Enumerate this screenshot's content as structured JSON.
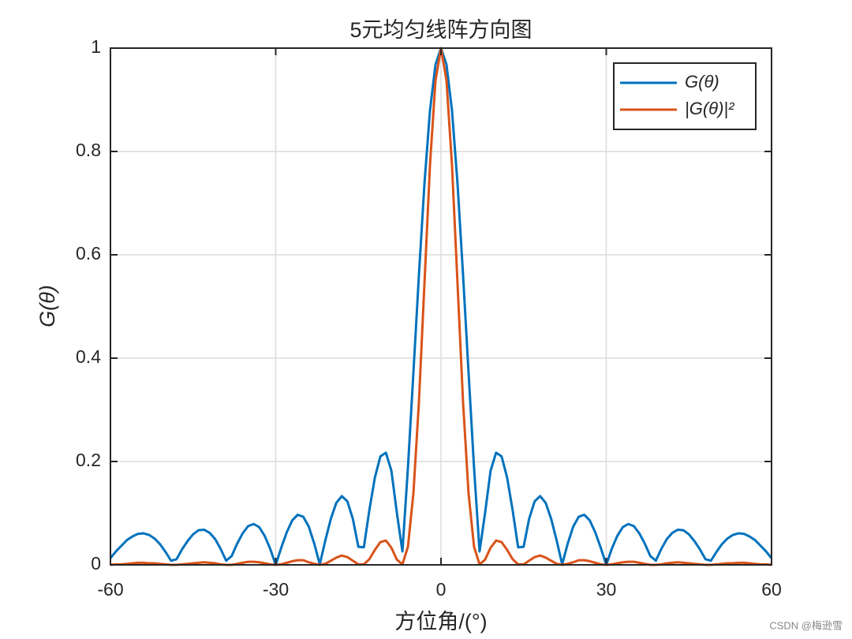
{
  "chart_data": {
    "type": "line",
    "title": "5元均匀线阵方向图",
    "x_label": "方位角/(°)",
    "y_label": "G(θ)",
    "x": [
      -60,
      -59,
      -58,
      -57,
      -56,
      -55,
      -54,
      -53,
      -52,
      -51,
      -50,
      -49,
      -48,
      -47,
      -46,
      -45,
      -44,
      -43,
      -42,
      -41,
      -40,
      -39,
      -38,
      -37,
      -36,
      -35,
      -34,
      -33,
      -32,
      -31,
      -30,
      -29,
      -28,
      -27,
      -26,
      -25,
      -24,
      -23,
      -22,
      -21,
      -20,
      -19,
      -18,
      -17,
      -16,
      -15,
      -14,
      -13,
      -12,
      -11,
      -10,
      -9,
      -8,
      -7,
      -6,
      -5,
      -4,
      -3,
      -2,
      -1,
      0,
      1,
      2,
      3,
      4,
      5,
      6,
      7,
      8,
      9,
      10,
      11,
      12,
      13,
      14,
      15,
      16,
      17,
      18,
      19,
      20,
      21,
      22,
      23,
      24,
      25,
      26,
      27,
      28,
      29,
      30,
      31,
      32,
      33,
      34,
      35,
      36,
      37,
      38,
      39,
      40,
      41,
      42,
      43,
      44,
      45,
      46,
      47,
      48,
      49,
      50,
      51,
      52,
      53,
      54,
      55,
      56,
      57,
      58,
      59,
      60
    ],
    "series": [
      {
        "name": "G(θ)",
        "color": "#0072BD",
        "values": [
          0.013,
          0.026,
          0.037,
          0.048,
          0.055,
          0.06,
          0.061,
          0.058,
          0.051,
          0.04,
          0.025,
          0.008,
          0.011,
          0.03,
          0.046,
          0.059,
          0.067,
          0.068,
          0.062,
          0.05,
          0.031,
          0.008,
          0.017,
          0.041,
          0.061,
          0.075,
          0.079,
          0.073,
          0.056,
          0.031,
          0,
          0.033,
          0.063,
          0.086,
          0.097,
          0.093,
          0.074,
          0.041,
          0.001,
          0.047,
          0.089,
          0.12,
          0.133,
          0.123,
          0.089,
          0.035,
          0.034,
          0.106,
          0.169,
          0.21,
          0.217,
          0.182,
          0.1,
          0.026,
          0.188,
          0.373,
          0.562,
          0.738,
          0.879,
          0.968,
          1,
          0.968,
          0.879,
          0.738,
          0.562,
          0.373,
          0.188,
          0.026,
          0.1,
          0.182,
          0.217,
          0.21,
          0.169,
          0.106,
          0.034,
          0.035,
          0.089,
          0.123,
          0.133,
          0.12,
          0.089,
          0.047,
          0.001,
          0.041,
          0.074,
          0.093,
          0.097,
          0.086,
          0.063,
          0.033,
          0,
          0.031,
          0.056,
          0.073,
          0.079,
          0.075,
          0.061,
          0.041,
          0.017,
          0.008,
          0.031,
          0.05,
          0.062,
          0.068,
          0.067,
          0.059,
          0.046,
          0.03,
          0.011,
          0.008,
          0.025,
          0.04,
          0.051,
          0.058,
          0.061,
          0.06,
          0.055,
          0.048,
          0.037,
          0.026,
          0.013
        ]
      },
      {
        "name": "|G(θ)|²",
        "color": "#D95319",
        "values": [
          0,
          0.001,
          0.001,
          0.002,
          0.003,
          0.004,
          0.004,
          0.003,
          0.003,
          0.002,
          0.001,
          0,
          0,
          0.001,
          0.002,
          0.003,
          0.004,
          0.005,
          0.004,
          0.003,
          0.001,
          0,
          0,
          0.002,
          0.004,
          0.006,
          0.006,
          0.005,
          0.003,
          0.001,
          0,
          0.001,
          0.004,
          0.007,
          0.009,
          0.009,
          0.005,
          0.002,
          0,
          0.002,
          0.008,
          0.014,
          0.018,
          0.015,
          0.008,
          0.001,
          0.001,
          0.011,
          0.029,
          0.044,
          0.047,
          0.033,
          0.01,
          0.001,
          0.035,
          0.139,
          0.316,
          0.545,
          0.773,
          0.937,
          1,
          0.937,
          0.773,
          0.545,
          0.316,
          0.139,
          0.035,
          0.001,
          0.01,
          0.033,
          0.047,
          0.044,
          0.029,
          0.011,
          0.001,
          0.001,
          0.008,
          0.015,
          0.018,
          0.014,
          0.008,
          0.002,
          0,
          0.002,
          0.005,
          0.009,
          0.009,
          0.007,
          0.004,
          0.001,
          0,
          0.001,
          0.003,
          0.005,
          0.006,
          0.006,
          0.004,
          0.002,
          0,
          0,
          0.001,
          0.003,
          0.004,
          0.005,
          0.004,
          0.003,
          0.002,
          0.001,
          0,
          0,
          0.001,
          0.002,
          0.003,
          0.003,
          0.004,
          0.004,
          0.003,
          0.002,
          0.001,
          0.001,
          0
        ]
      }
    ],
    "xlim": [
      -60,
      60
    ],
    "xticks": [
      -60,
      -30,
      0,
      30,
      60
    ],
    "ylim": [
      0,
      1
    ],
    "yticks": [
      0,
      0.2,
      0.4,
      0.6,
      0.8,
      1
    ],
    "grid": true,
    "legend": "top-right",
    "watermark": "CSDN @梅逊雪"
  }
}
